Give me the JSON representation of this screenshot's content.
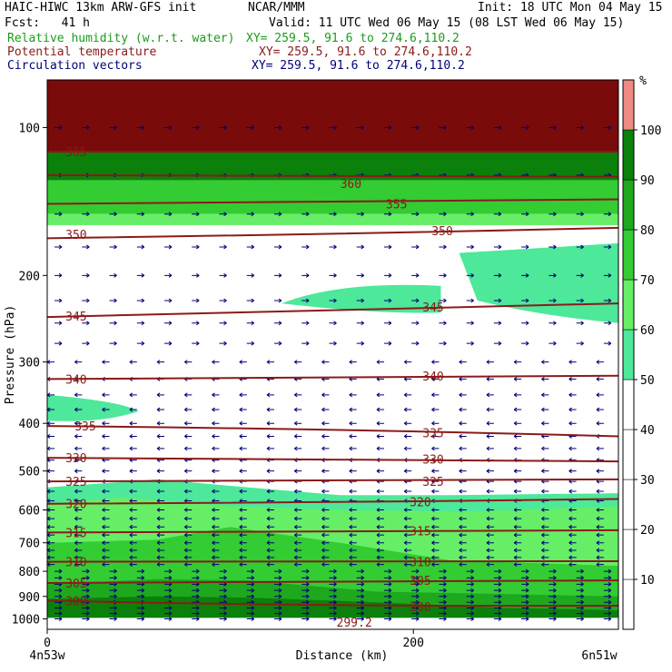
{
  "header": {
    "model": "HAIC-HIWC 13km ARW-GFS init",
    "org": "NCAR/MMM",
    "init": "Init: 18 UTC Mon 04 May 15",
    "fcst": "Fcst:   41 h",
    "valid": "Valid: 11 UTC Wed 06 May 15 (08 LST Wed 06 May 15)",
    "fields": [
      {
        "label": "Relative humidity (w.r.t. water)",
        "xy": "XY= 259.5, 91.6 to 274.6,110.2",
        "color": "#1c9a1c"
      },
      {
        "label": "Potential temperature",
        "xy": "XY= 259.5, 91.6 to 274.6,110.2",
        "color": "#8b1a1a"
      },
      {
        "label": "Circulation vectors",
        "xy": "XY= 259.5, 91.6 to 274.6,110.2",
        "color": "#00007a"
      }
    ]
  },
  "chart_data": {
    "type": "heatmap",
    "ylabel": "Pressure (hPa)",
    "xlabel": "Distance (km)",
    "x_ticks": [
      0,
      200
    ],
    "x_range": [
      0,
      312
    ],
    "y_ticks": [
      100,
      200,
      300,
      400,
      500,
      600,
      700,
      800,
      900,
      1000
    ],
    "y_scale": "log",
    "y_range": [
      1050,
      80
    ],
    "endpoints": {
      "left": "4n53w",
      "right": "6n51w"
    },
    "colorbar": {
      "unit": "%",
      "levels": [
        10,
        20,
        30,
        40,
        50,
        60,
        70,
        80,
        90,
        100
      ],
      "colors": [
        "#ffffff",
        "#ffffff",
        "#ffffff",
        "#ffffff",
        "#ffffff",
        "#4de89a",
        "#66ee66",
        "#33cc33",
        "#1ea81e",
        "#0b800b",
        "#f08a84"
      ]
    },
    "rh_bands": [
      {
        "color": "#4de89a",
        "p_top": 520,
        "p_bot": 900
      },
      {
        "color": "#66ee66",
        "p_top": 560,
        "p_bot": 900
      },
      {
        "color": "#33cc33",
        "p_top": 640,
        "p_bot": 960
      },
      {
        "color": "#1ea81e",
        "p_top": 830,
        "p_bot": 990
      },
      {
        "color": "#0b800b",
        "p_top": 880,
        "p_bot": 1010
      }
    ],
    "theta_labels": [
      "365",
      "360",
      "355",
      "350",
      "345",
      "340",
      "335",
      "330",
      "325",
      "320",
      "315",
      "310",
      "305",
      "300",
      "299.2"
    ],
    "theta_label_positions": [
      {
        "label": "365",
        "x": 10,
        "p": 112
      },
      {
        "label": "360",
        "x": 160,
        "p": 130
      },
      {
        "label": "355",
        "x": 185,
        "p": 143
      },
      {
        "label": "350",
        "x": 10,
        "p": 165
      },
      {
        "label": "350",
        "x": 210,
        "p": 162
      },
      {
        "label": "345",
        "x": 10,
        "p": 242
      },
      {
        "label": "345",
        "x": 205,
        "p": 232
      },
      {
        "label": "340",
        "x": 10,
        "p": 325
      },
      {
        "label": "340",
        "x": 205,
        "p": 320
      },
      {
        "label": "335",
        "x": 15,
        "p": 405
      },
      {
        "label": "335",
        "x": 205,
        "p": 418
      },
      {
        "label": "330",
        "x": 10,
        "p": 470
      },
      {
        "label": "330",
        "x": 205,
        "p": 473
      },
      {
        "label": "325",
        "x": 10,
        "p": 525
      },
      {
        "label": "325",
        "x": 205,
        "p": 525
      },
      {
        "label": "320",
        "x": 10,
        "p": 583
      },
      {
        "label": "320",
        "x": 198,
        "p": 578
      },
      {
        "label": "315",
        "x": 10,
        "p": 667
      },
      {
        "label": "315",
        "x": 198,
        "p": 662
      },
      {
        "label": "310",
        "x": 10,
        "p": 765
      },
      {
        "label": "310",
        "x": 198,
        "p": 765
      },
      {
        "label": "305",
        "x": 10,
        "p": 845
      },
      {
        "label": "305",
        "x": 198,
        "p": 835
      },
      {
        "label": "300",
        "x": 10,
        "p": 918
      },
      {
        "label": "300",
        "x": 198,
        "p": 945
      },
      {
        "label": "299.2",
        "x": 158,
        "p": 1015
      }
    ],
    "theta_lines": [
      {
        "value": 365,
        "p": [
          112,
          112,
          112
        ]
      },
      {
        "value": 360,
        "p": [
          125,
          126,
          126
        ]
      },
      {
        "value": 355,
        "p": [
          143,
          142,
          140
        ]
      },
      {
        "value": 350,
        "p": [
          168,
          165,
          160
        ]
      },
      {
        "value": 345,
        "p": [
          243,
          236,
          228
        ]
      },
      {
        "value": 340,
        "p": [
          325,
          322,
          320
        ]
      },
      {
        "value": 335,
        "p": [
          405,
          410,
          425
        ]
      },
      {
        "value": 330,
        "p": [
          470,
          472,
          478
        ]
      },
      {
        "value": 325,
        "p": [
          525,
          525,
          520
        ]
      },
      {
        "value": 320,
        "p": [
          583,
          580,
          570
        ]
      },
      {
        "value": 315,
        "p": [
          667,
          665,
          660
        ]
      },
      {
        "value": 310,
        "p": [
          765,
          765,
          763
        ]
      },
      {
        "value": 305,
        "p": [
          845,
          835,
          835
        ]
      },
      {
        "value": 300,
        "p": [
          918,
          945,
          940
        ]
      }
    ]
  }
}
